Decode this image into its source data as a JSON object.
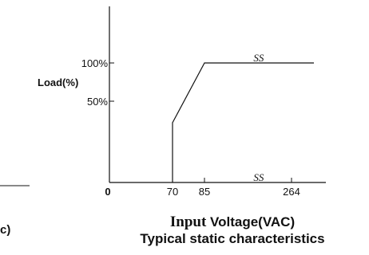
{
  "chart_data": {
    "type": "line",
    "title": "Typical static characteristics",
    "xlabel_bold": "Input",
    "xlabel_rest": "Voltage(VAC)",
    "ylabel": "Load(%)",
    "x_ticks": [
      "0",
      "70",
      "85",
      "264"
    ],
    "y_ticks": [
      "50%",
      "100%"
    ],
    "xlim": [
      0,
      300
    ],
    "ylim": [
      0,
      140
    ],
    "series": [
      {
        "x": [
          70,
          70,
          85,
          290
        ],
        "y": [
          0,
          50,
          100,
          100
        ]
      }
    ],
    "annotations": [
      {
        "text": "SS",
        "x": 180,
        "y": 100
      },
      {
        "text": "SS",
        "x": 180,
        "y": 0
      }
    ],
    "partial_left_chart": {
      "clipped_label": "c)"
    }
  }
}
